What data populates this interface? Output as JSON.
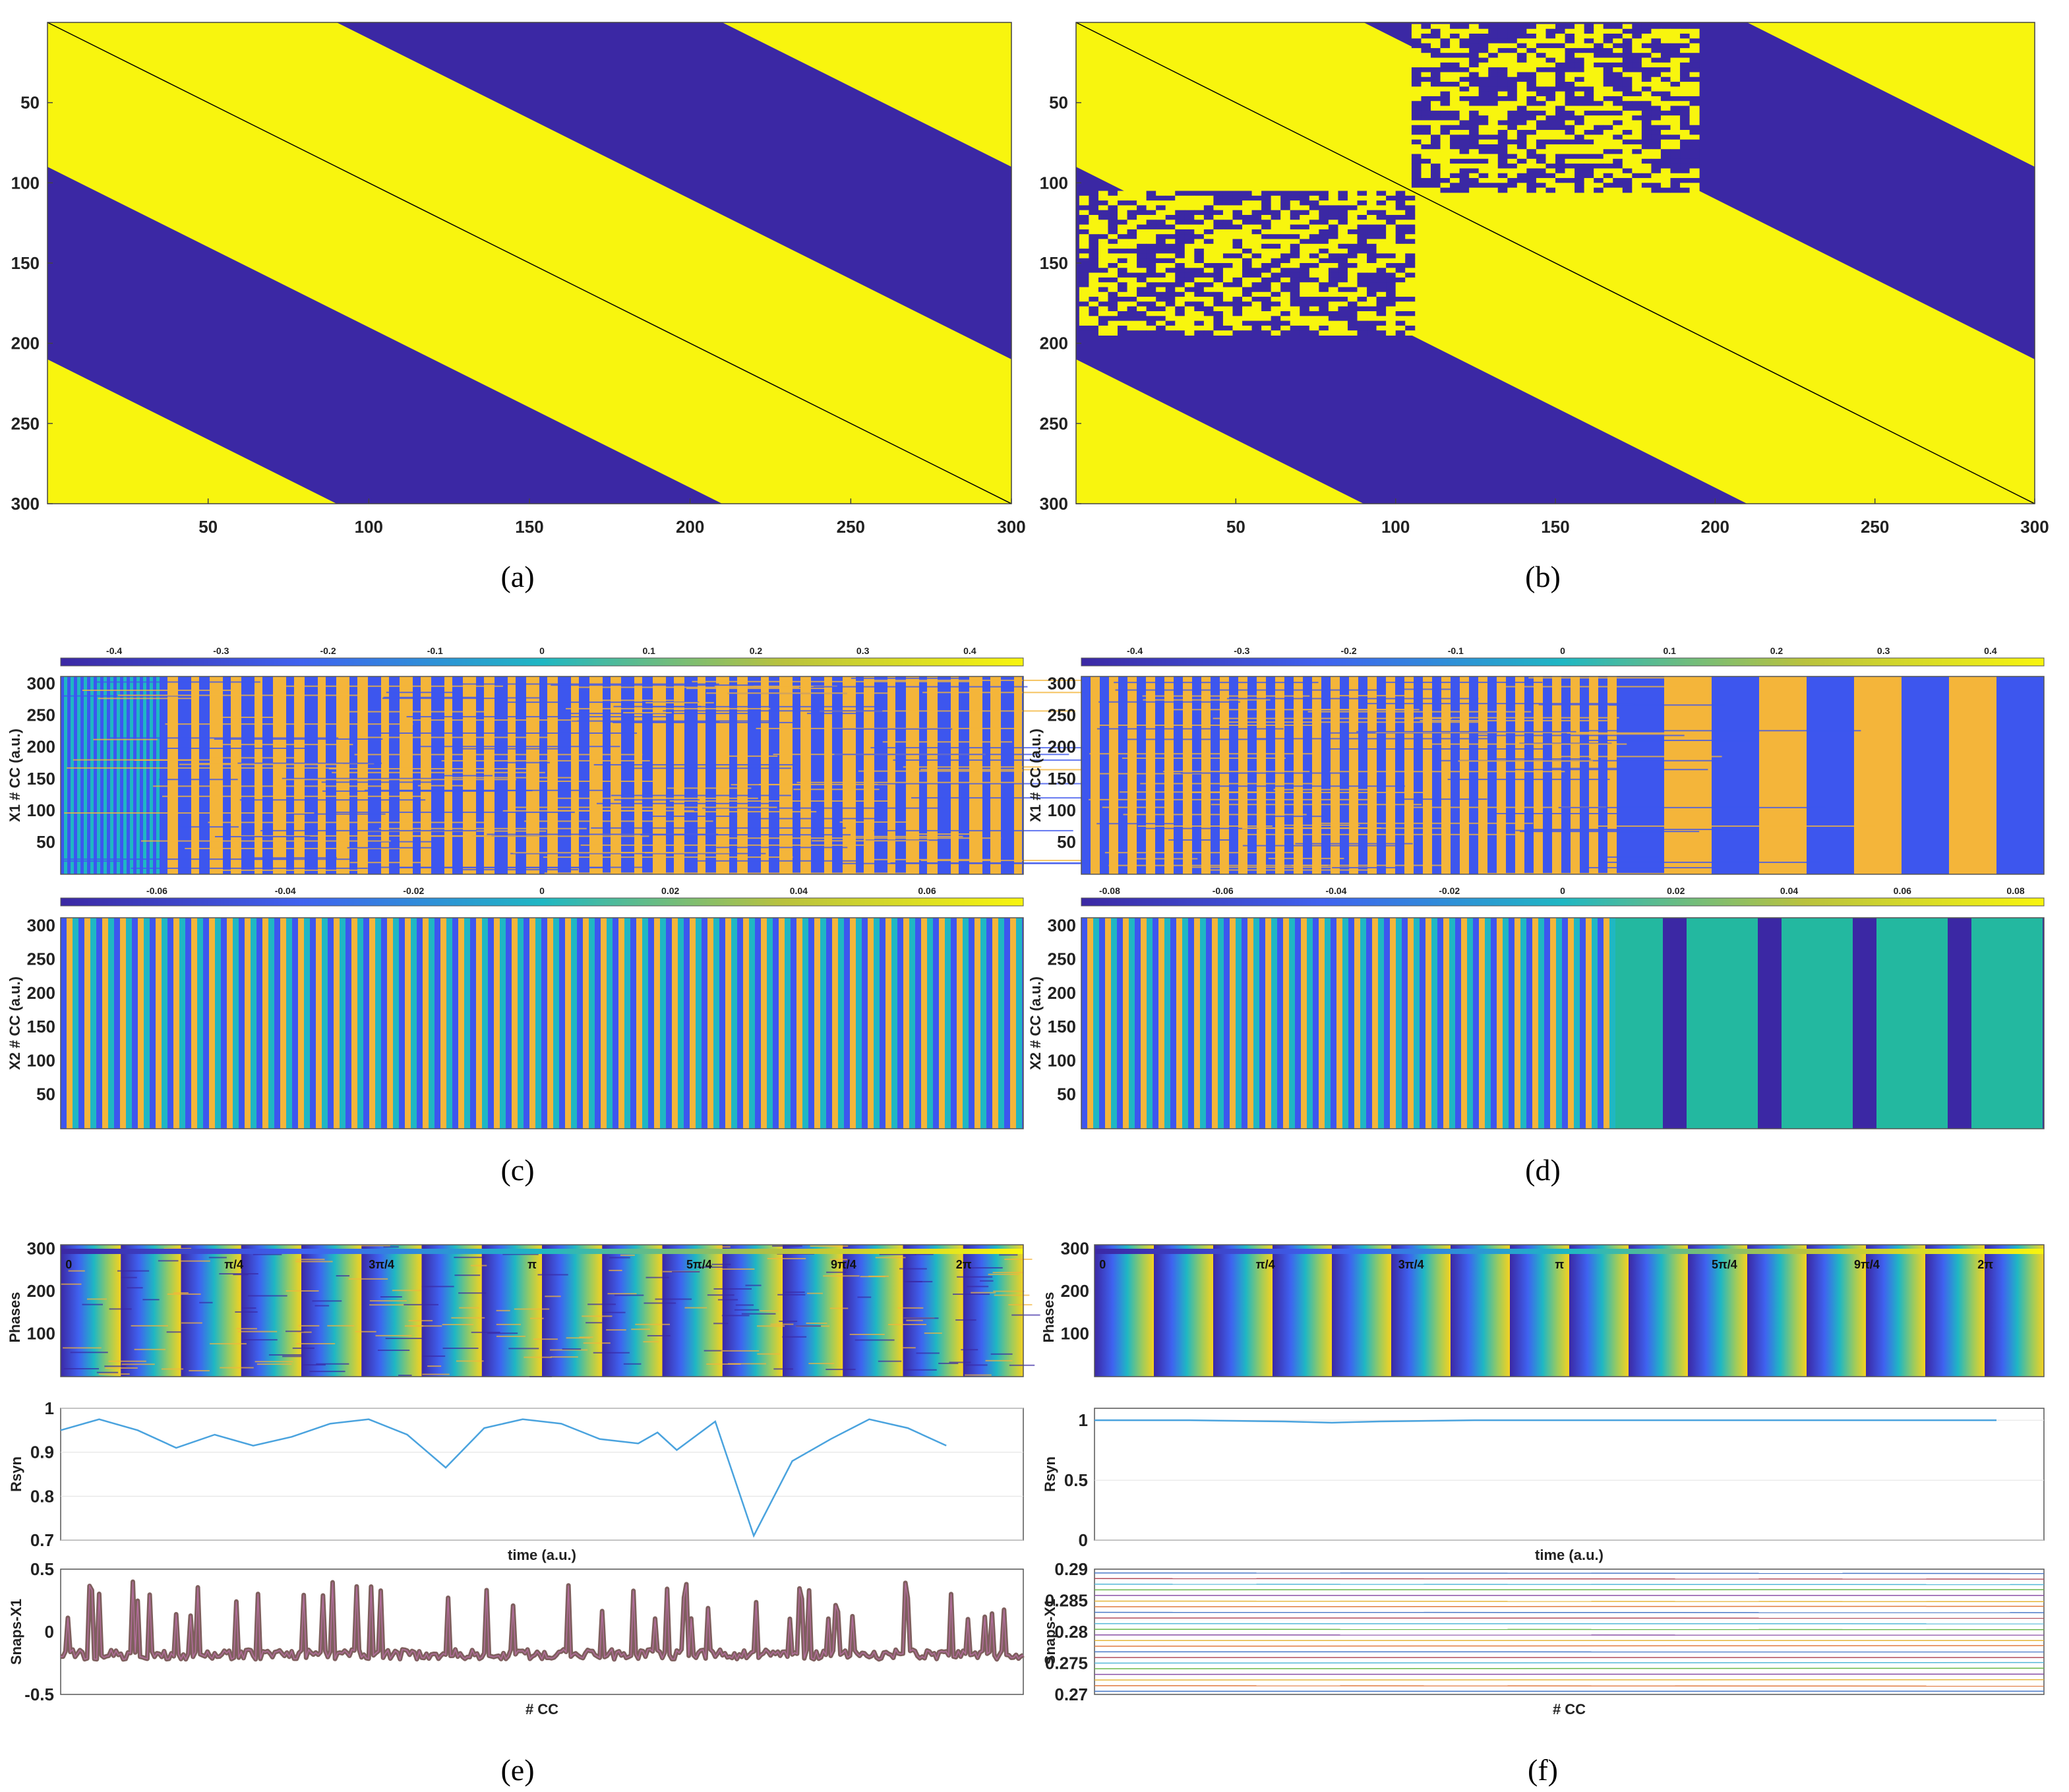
{
  "colors": {
    "navy": "#3b28a4",
    "yellow": "#f8f50e",
    "blue": "#3d56ee",
    "cyan": "#1fb7c3",
    "orange": "#f4b53a",
    "teal": "#23b8a0",
    "line_blue": "#4aa3de",
    "snap_brown": "#7f5f5e",
    "snap_purple": "#b36d9c"
  },
  "captions": [
    "(a)",
    "(b)",
    "(c)",
    "(d)",
    "(e)",
    "(f)"
  ],
  "chart_data": [
    {
      "id": "a",
      "type": "heatmap",
      "description_kind": "binary coupling matrix",
      "x_ticks": [
        "50",
        "100",
        "150",
        "200",
        "250",
        "300"
      ],
      "y_ticks": [
        "50",
        "100",
        "150",
        "200",
        "250",
        "300"
      ],
      "xlim": [
        1,
        300
      ],
      "ylim": [
        1,
        300
      ],
      "coupling_radius": 90,
      "noise_blocks": []
    },
    {
      "id": "b",
      "type": "heatmap",
      "description_kind": "binary coupling matrix with random blocks",
      "x_ticks": [
        "50",
        "100",
        "150",
        "200",
        "250",
        "300"
      ],
      "y_ticks": [
        "50",
        "100",
        "150",
        "200",
        "250",
        "300"
      ],
      "xlim": [
        1,
        300
      ],
      "ylim": [
        1,
        300
      ],
      "coupling_radius": 90,
      "noise_blocks": [
        {
          "row_start": 1,
          "row_end": 105,
          "col_start": 105,
          "col_end": 195
        },
        {
          "row_start": 105,
          "row_end": 195,
          "col_start": 1,
          "col_end": 105
        }
      ]
    },
    {
      "id": "c-top",
      "type": "heatmap",
      "ylabel": "X1 # CC (a.u.)",
      "y_ticks": [
        "50",
        "100",
        "150",
        "200",
        "250",
        "300"
      ],
      "colorbar_ticks": [
        "-0.4",
        "-0.3",
        "-0.2",
        "-0.1",
        "0",
        "0.1",
        "0.2",
        "0.3",
        "0.4"
      ],
      "colorbar_range": [
        -0.45,
        0.45
      ]
    },
    {
      "id": "c-bottom",
      "type": "heatmap",
      "ylabel": "X2 # CC (a.u.)",
      "y_ticks": [
        "50",
        "100",
        "150",
        "200",
        "250",
        "300"
      ],
      "colorbar_ticks": [
        "-0.06",
        "-0.04",
        "-0.02",
        "0",
        "0.02",
        "0.04",
        "0.06"
      ],
      "colorbar_range": [
        -0.075,
        0.075
      ]
    },
    {
      "id": "d-top",
      "type": "heatmap",
      "ylabel": "X1 # CC (a.u.)",
      "y_ticks": [
        "50",
        "100",
        "150",
        "200",
        "250",
        "300"
      ],
      "colorbar_ticks": [
        "-0.4",
        "-0.3",
        "-0.2",
        "-0.1",
        "0",
        "0.1",
        "0.2",
        "0.3",
        "0.4"
      ],
      "colorbar_range": [
        -0.45,
        0.45
      ]
    },
    {
      "id": "d-bottom",
      "type": "heatmap",
      "ylabel": "X2 # CC (a.u.)",
      "y_ticks": [
        "50",
        "100",
        "150",
        "200",
        "250",
        "300"
      ],
      "colorbar_ticks": [
        "-0.08",
        "-0.06",
        "-0.04",
        "-0.02",
        "0",
        "0.02",
        "0.04",
        "0.06",
        "0.08"
      ],
      "colorbar_range": [
        -0.085,
        0.085
      ]
    },
    {
      "id": "e-phases",
      "type": "heatmap",
      "ylabel": "Phases",
      "y_ticks": [
        "100",
        "200",
        "300"
      ],
      "colorbar_ticks": [
        "0",
        "π/4",
        "3π/4",
        "π",
        "5π/4",
        "9π/4",
        "2π"
      ]
    },
    {
      "id": "e-rsyn",
      "type": "line",
      "ylabel": "Rsyn",
      "xlabel": "time (a.u.)",
      "ylim": [
        0.7,
        1
      ],
      "y_ticks": [
        "0.7",
        "0.8",
        "0.9",
        "1"
      ],
      "x": [
        0,
        0.04,
        0.08,
        0.12,
        0.16,
        0.2,
        0.24,
        0.28,
        0.32,
        0.36,
        0.4,
        0.44,
        0.48,
        0.52,
        0.56,
        0.6,
        0.62,
        0.64,
        0.68,
        0.72,
        0.76,
        0.8,
        0.84,
        0.88,
        0.92
      ],
      "values": [
        0.95,
        0.975,
        0.95,
        0.91,
        0.94,
        0.915,
        0.935,
        0.965,
        0.975,
        0.94,
        0.865,
        0.955,
        0.975,
        0.965,
        0.93,
        0.92,
        0.945,
        0.905,
        0.97,
        0.71,
        0.88,
        0.93,
        0.975,
        0.955,
        0.915
      ]
    },
    {
      "id": "e-snaps",
      "type": "line",
      "ylabel": "Snaps-X1",
      "xlabel": "# CC",
      "ylim": [
        -0.5,
        0.5
      ],
      "y_ticks": [
        "-0.5",
        "0",
        "0.5"
      ]
    },
    {
      "id": "f-phases",
      "type": "heatmap",
      "ylabel": "Phases",
      "y_ticks": [
        "100",
        "200",
        "300"
      ],
      "colorbar_ticks": [
        "0",
        "π/4",
        "3π/4",
        "π",
        "5π/4",
        "9π/4",
        "2π"
      ]
    },
    {
      "id": "f-rsyn",
      "type": "line",
      "ylabel": "Rsyn",
      "xlabel": "time (a.u.)",
      "ylim": [
        0,
        1.1
      ],
      "y_ticks": [
        "0",
        "0.5",
        "1"
      ],
      "x": [
        0,
        0.1,
        0.2,
        0.25,
        0.3,
        0.4,
        0.5,
        0.6,
        0.7,
        0.8,
        0.9,
        0.95
      ],
      "values": [
        1,
        1,
        0.99,
        0.98,
        0.99,
        1,
        1,
        1,
        1,
        1,
        1,
        1
      ]
    },
    {
      "id": "f-snaps",
      "type": "line",
      "ylabel": "Snaps-X1",
      "xlabel": "# CC",
      "ylim": [
        0.27,
        0.29
      ],
      "y_ticks": [
        "0.27",
        "0.275",
        "0.28",
        "0.285",
        "0.29"
      ]
    }
  ]
}
